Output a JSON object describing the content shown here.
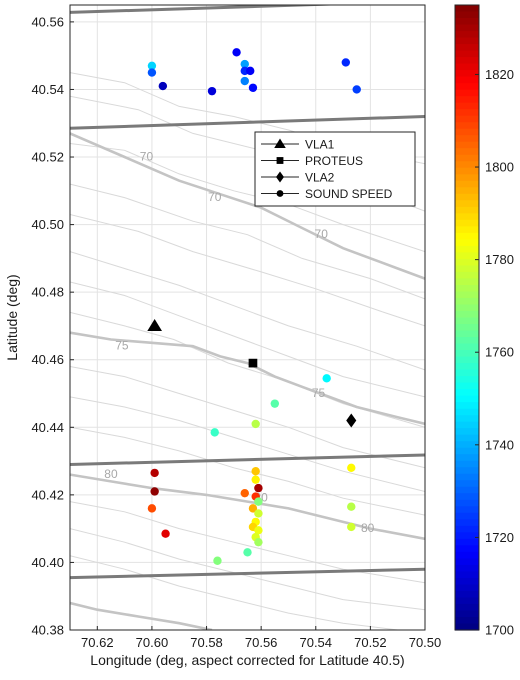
{
  "chart_data": {
    "type": "scatter",
    "xlabel": "Longitude (deg, aspect corrected for Latitude 40.5)",
    "ylabel": "Latitude (deg)",
    "xlim": [
      70.63,
      70.5
    ],
    "ylim": [
      40.38,
      40.565
    ],
    "x_reversed": true,
    "x_ticks": [
      70.62,
      70.6,
      70.58,
      70.56,
      70.54,
      70.52,
      70.5
    ],
    "y_ticks": [
      40.38,
      40.4,
      40.42,
      40.44,
      40.46,
      40.48,
      40.5,
      40.52,
      40.54,
      40.56
    ],
    "grid": true,
    "colorbar": {
      "min": 1700,
      "max": 1835,
      "ticks": [
        1700,
        1720,
        1740,
        1760,
        1780,
        1800,
        1820
      ],
      "colormap": "jet"
    },
    "legend": {
      "placement": "upper-right",
      "entries": [
        {
          "label": "VLA1",
          "marker": "triangle"
        },
        {
          "label": "PROTEUS",
          "marker": "square"
        },
        {
          "label": "VLA2",
          "marker": "diamond"
        },
        {
          "label": "SOUND SPEED",
          "marker": "circle"
        }
      ]
    },
    "instruments": [
      {
        "name": "VLA1",
        "marker": "triangle",
        "x": 70.599,
        "y": 40.47
      },
      {
        "name": "PROTEUS",
        "marker": "square",
        "x": 70.563,
        "y": 40.459
      },
      {
        "name": "VLA2",
        "marker": "diamond",
        "x": 70.527,
        "y": 40.442
      }
    ],
    "sound_speed": [
      {
        "x": 70.6,
        "y": 40.547,
        "v": 1745
      },
      {
        "x": 70.6,
        "y": 40.545,
        "v": 1728
      },
      {
        "x": 70.596,
        "y": 40.541,
        "v": 1708
      },
      {
        "x": 70.578,
        "y": 40.5395,
        "v": 1712
      },
      {
        "x": 70.569,
        "y": 40.551,
        "v": 1716
      },
      {
        "x": 70.566,
        "y": 40.5475,
        "v": 1738
      },
      {
        "x": 70.566,
        "y": 40.5455,
        "v": 1722
      },
      {
        "x": 70.564,
        "y": 40.5455,
        "v": 1716
      },
      {
        "x": 70.566,
        "y": 40.5425,
        "v": 1734
      },
      {
        "x": 70.563,
        "y": 40.5405,
        "v": 1718
      },
      {
        "x": 70.529,
        "y": 40.548,
        "v": 1722
      },
      {
        "x": 70.525,
        "y": 40.54,
        "v": 1725
      },
      {
        "x": 70.536,
        "y": 40.4545,
        "v": 1750
      },
      {
        "x": 70.555,
        "y": 40.447,
        "v": 1762
      },
      {
        "x": 70.577,
        "y": 40.4385,
        "v": 1758
      },
      {
        "x": 70.562,
        "y": 40.441,
        "v": 1775
      },
      {
        "x": 70.599,
        "y": 40.4265,
        "v": 1828
      },
      {
        "x": 70.599,
        "y": 40.421,
        "v": 1833
      },
      {
        "x": 70.6,
        "y": 40.416,
        "v": 1808
      },
      {
        "x": 70.595,
        "y": 40.4085,
        "v": 1822
      },
      {
        "x": 70.566,
        "y": 40.4205,
        "v": 1805
      },
      {
        "x": 70.562,
        "y": 40.427,
        "v": 1792
      },
      {
        "x": 70.562,
        "y": 40.4245,
        "v": 1786
      },
      {
        "x": 70.561,
        "y": 40.422,
        "v": 1830
      },
      {
        "x": 70.562,
        "y": 40.4195,
        "v": 1812
      },
      {
        "x": 70.561,
        "y": 40.418,
        "v": 1768
      },
      {
        "x": 70.563,
        "y": 40.416,
        "v": 1795
      },
      {
        "x": 70.561,
        "y": 40.4145,
        "v": 1778
      },
      {
        "x": 70.562,
        "y": 40.412,
        "v": 1785
      },
      {
        "x": 70.563,
        "y": 40.4105,
        "v": 1790
      },
      {
        "x": 70.561,
        "y": 40.4095,
        "v": 1782
      },
      {
        "x": 70.562,
        "y": 40.4075,
        "v": 1780
      },
      {
        "x": 70.561,
        "y": 40.406,
        "v": 1772
      },
      {
        "x": 70.565,
        "y": 40.403,
        "v": 1762
      },
      {
        "x": 70.576,
        "y": 40.4005,
        "v": 1768
      },
      {
        "x": 70.527,
        "y": 40.428,
        "v": 1785
      },
      {
        "x": 70.527,
        "y": 40.4165,
        "v": 1775
      },
      {
        "x": 70.527,
        "y": 40.4105,
        "v": 1778
      }
    ],
    "boundary_lines": [
      {
        "x": [
          70.63,
          70.5
        ],
        "y": [
          40.5628,
          40.5662
        ]
      },
      {
        "x": [
          70.63,
          70.5
        ],
        "y": [
          40.5285,
          40.532
        ]
      },
      {
        "x": [
          70.63,
          70.5
        ],
        "y": [
          40.429,
          40.4318
        ]
      },
      {
        "x": [
          70.63,
          70.5
        ],
        "y": [
          40.3955,
          40.398
        ]
      }
    ],
    "contour_labels": [
      {
        "text": "70",
        "x": 70.602,
        "y": 40.519
      },
      {
        "text": "70",
        "x": 70.577,
        "y": 40.507
      },
      {
        "text": "70",
        "x": 70.538,
        "y": 40.496
      },
      {
        "text": "75",
        "x": 70.611,
        "y": 40.463
      },
      {
        "text": "75",
        "x": 70.539,
        "y": 40.449
      },
      {
        "text": "80",
        "x": 70.615,
        "y": 40.425
      },
      {
        "text": "80",
        "x": 70.56,
        "y": 40.418
      },
      {
        "text": "80",
        "x": 70.521,
        "y": 40.409
      }
    ]
  }
}
